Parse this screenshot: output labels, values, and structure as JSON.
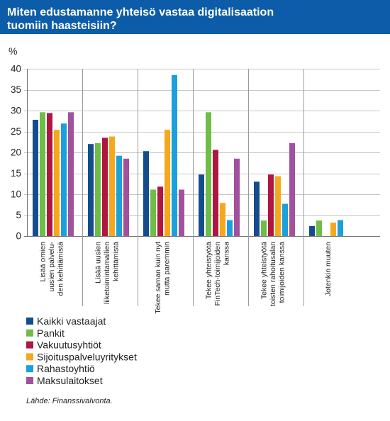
{
  "colors": {
    "header_background": "#0d5ca9",
    "header_text": "#ffffff"
  },
  "chart_data": {
    "type": "bar",
    "title": [
      "Miten edustamanne yhteisö vastaa digitalisaation",
      "tuomiin haasteisiin?"
    ],
    "ylabel": "%",
    "ylim": [
      0,
      40
    ],
    "yticks": [
      0,
      5,
      10,
      15,
      20,
      25,
      30,
      35,
      40
    ],
    "grid": true,
    "legend_position": "bottom",
    "categories": [
      [
        "Lisää omien",
        "uusien palvelu-",
        "den kehittämistä"
      ],
      [
        "Lisää uusien",
        "liiketoimintamallien",
        "kehittämistä"
      ],
      [
        "Tekee saman kuin nyt",
        "mutta paremmin"
      ],
      [
        "Tekee yhteistyötä",
        "FinTech-toimijoiden",
        "kanssa"
      ],
      [
        "Tekee yhteistyötä",
        "toisten rahoitusalan",
        "toimijoiden kanssa"
      ],
      [
        "Jotenkin muuten"
      ]
    ],
    "series": [
      {
        "name": "Kaikki vastaajat",
        "color": "#154d8c",
        "values": [
          27.8,
          22.0,
          20.3,
          14.7,
          13.0,
          2.4
        ]
      },
      {
        "name": "Pankit",
        "color": "#6fbd47",
        "values": [
          29.6,
          22.2,
          11.1,
          29.6,
          3.7,
          3.7
        ]
      },
      {
        "name": "Vakuutusyhtiöt",
        "color": "#b01642",
        "values": [
          29.4,
          23.5,
          11.8,
          20.6,
          14.7,
          0
        ]
      },
      {
        "name": "Sijoituspalveluyritykset",
        "color": "#f5a81c",
        "values": [
          25.4,
          23.8,
          25.4,
          7.9,
          14.3,
          3.2
        ]
      },
      {
        "name": "Rahastoyhtiö",
        "color": "#1ba0db",
        "values": [
          26.9,
          19.2,
          38.5,
          3.8,
          7.7,
          3.8
        ]
      },
      {
        "name": "Maksulaitokset",
        "color": "#a2519c",
        "values": [
          29.6,
          18.5,
          11.1,
          18.5,
          22.2,
          0
        ]
      }
    ]
  },
  "source_note": "Lähde: Finanssivalvonta."
}
